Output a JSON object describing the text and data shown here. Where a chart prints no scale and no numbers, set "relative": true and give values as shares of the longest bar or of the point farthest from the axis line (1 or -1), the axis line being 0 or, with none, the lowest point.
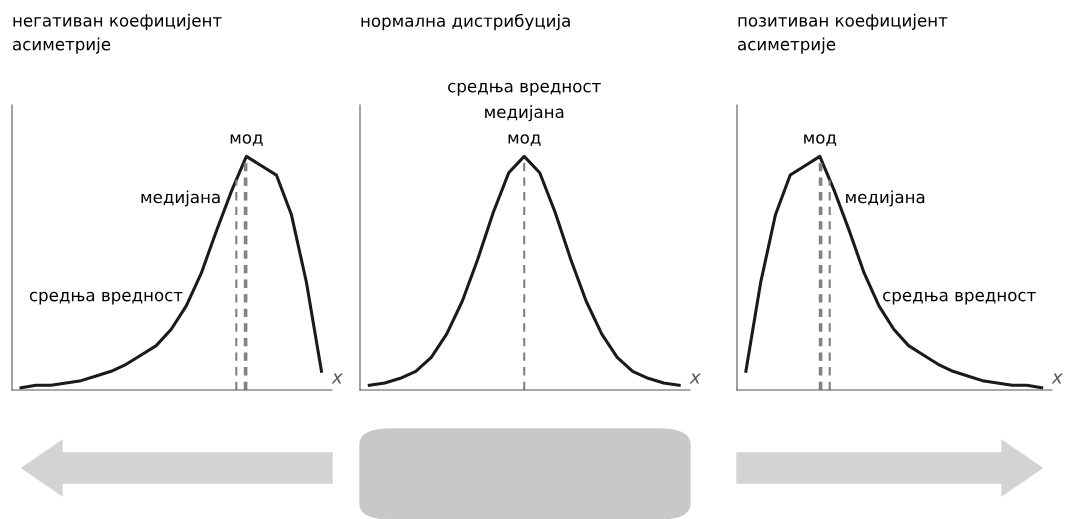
{
  "chart_data": [
    {
      "type": "line",
      "title": "негативан коефицијент\nасиметрије",
      "xlabel": "x",
      "relative": true,
      "categories": [
        null,
        null,
        null,
        null,
        null,
        null,
        null,
        null,
        null,
        null,
        null,
        null,
        null,
        null,
        null,
        null,
        null,
        null,
        null,
        null,
        null
      ],
      "series": [
        {
          "color": "#1a1a1a",
          "values": [
            0.01,
            0.02,
            0.02,
            0.03,
            0.04,
            0.06,
            0.08,
            0.11,
            0.15,
            0.19,
            0.26,
            0.36,
            0.5,
            0.68,
            0.85,
            1,
            0.96,
            0.92,
            0.75,
            0.46,
            0.08
          ]
        }
      ],
      "annotations": [
        "средња вредност",
        "медијана",
        "мод"
      ]
    },
    {
      "type": "line",
      "title": "нормална дистрибуција",
      "xlabel": "x",
      "relative": true,
      "categories": [
        null,
        null,
        null,
        null,
        null,
        null,
        null,
        null,
        null,
        null,
        null,
        null,
        null,
        null,
        null,
        null,
        null,
        null,
        null,
        null,
        null
      ],
      "series": [
        {
          "color": "#1a1a1a",
          "values": [
            0.02,
            0.03,
            0.05,
            0.08,
            0.14,
            0.24,
            0.38,
            0.56,
            0.76,
            0.93,
            1,
            0.93,
            0.76,
            0.56,
            0.38,
            0.24,
            0.14,
            0.08,
            0.05,
            0.03,
            0.02
          ]
        }
      ],
      "annotations": [
        "средња вредност",
        "медијана",
        "мод"
      ]
    },
    {
      "type": "line",
      "title": "позитиван коефицијент\nасиметрије",
      "xlabel": "x",
      "relative": true,
      "categories": [
        null,
        null,
        null,
        null,
        null,
        null,
        null,
        null,
        null,
        null,
        null,
        null,
        null,
        null,
        null,
        null,
        null,
        null,
        null,
        null,
        null
      ],
      "series": [
        {
          "color": "#1a1a1a",
          "values": [
            0.08,
            0.46,
            0.75,
            0.92,
            0.96,
            1,
            0.85,
            0.68,
            0.5,
            0.36,
            0.26,
            0.19,
            0.15,
            0.11,
            0.08,
            0.06,
            0.04,
            0.03,
            0.02,
            0.02,
            0.01
          ]
        }
      ],
      "annotations": [
        "мод",
        "медијана",
        "средња вредност"
      ]
    }
  ]
}
